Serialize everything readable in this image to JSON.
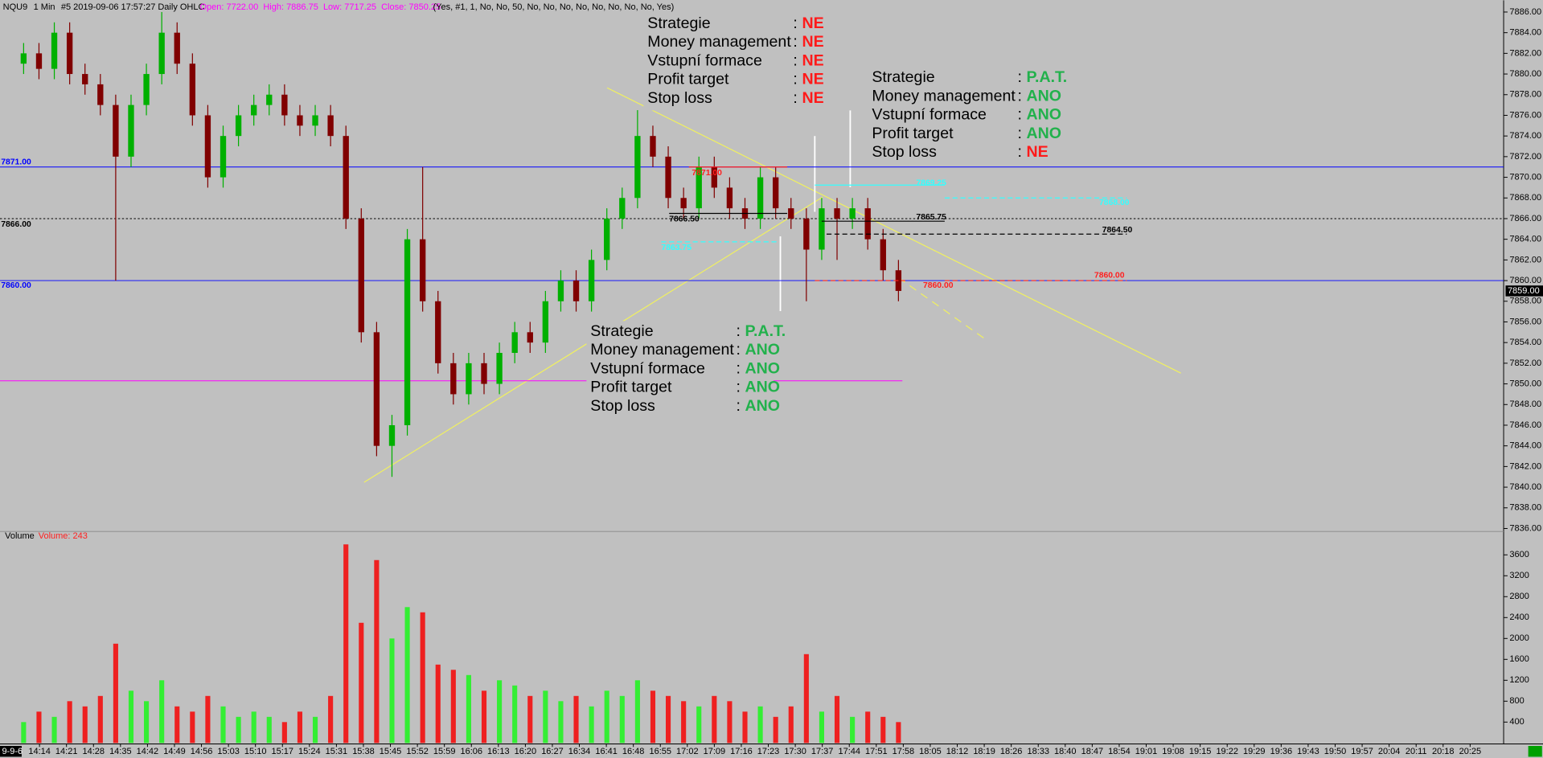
{
  "chart_data": {
    "type": "candlestick",
    "header": {
      "symbol": "NQU9",
      "interval": "1 Min",
      "info": "#5 2019-09-06 17:57:27 Daily OHLC",
      "ohlc": "Open: 7722.00  High: 7886.75  Low: 7717.25  Close: 7850.25",
      "params": "(Yes, #1, 1, No, No, 50, No, No, No, No, No, No, No, No, Yes)"
    },
    "volume_title": "Volume",
    "volume_label": "Volume: 243",
    "date_label": "9-9-6",
    "last_price": {
      "value": 7859,
      "label": "7859.00"
    },
    "open": [
      7881,
      7882,
      7880.5,
      7884,
      7880,
      7879,
      7877,
      7872,
      7877,
      7880,
      7884,
      7881,
      7876,
      7870,
      7874,
      7876,
      7877,
      7878,
      7876,
      7875,
      7876,
      7874,
      7866,
      7855,
      7844,
      7846,
      7864,
      7858,
      7852,
      7849,
      7852,
      7850,
      7853,
      7855,
      7854,
      7858,
      7860,
      7858,
      7862,
      7866,
      7868,
      7874,
      7872,
      7868,
      7867,
      7871,
      7869,
      7867,
      7866,
      7870,
      7867,
      7866,
      7863,
      7867,
      7866,
      7867,
      7864,
      7861
    ],
    "high": [
      7883,
      7883,
      7885,
      7885,
      7881,
      7880,
      7878,
      7878,
      7881,
      7886,
      7885,
      7882,
      7877,
      7875,
      7877,
      7878,
      7879,
      7879,
      7877,
      7877,
      7877,
      7875,
      7867,
      7856,
      7847,
      7865,
      7871,
      7859,
      7853,
      7853,
      7853,
      7854,
      7856,
      7856,
      7859,
      7861,
      7861,
      7863,
      7867,
      7869,
      7876.5,
      7875,
      7873,
      7869,
      7872,
      7872,
      7870,
      7868,
      7871,
      7871,
      7868,
      7867,
      7868,
      7868,
      7868,
      7868,
      7865,
      7862
    ],
    "low": [
      7880,
      7879.5,
      7879.5,
      7879,
      7878,
      7876,
      7860,
      7871,
      7876,
      7879,
      7880,
      7875,
      7869,
      7869,
      7873,
      7875,
      7876,
      7875,
      7874,
      7874,
      7873,
      7865,
      7854,
      7843,
      7841,
      7845,
      7857,
      7851,
      7848,
      7848,
      7849,
      7849,
      7852,
      7853,
      7853,
      7857,
      7857,
      7857,
      7861,
      7865,
      7867,
      7871,
      7867,
      7866,
      7866,
      7868,
      7866,
      7865,
      7865,
      7866,
      7865,
      7858,
      7862,
      7862,
      7865,
      7863,
      7860,
      7858
    ],
    "close": [
      7882,
      7880.5,
      7884,
      7880,
      7879,
      7877,
      7872,
      7877,
      7880,
      7884,
      7881,
      7876,
      7870,
      7874,
      7876,
      7877,
      7878,
      7876,
      7875,
      7876,
      7874,
      7866,
      7855,
      7844,
      7846,
      7864,
      7858,
      7852,
      7849,
      7852,
      7850,
      7853,
      7855,
      7854,
      7858,
      7860,
      7858,
      7862,
      7866,
      7868,
      7874,
      7872,
      7868,
      7867,
      7871,
      7869,
      7867,
      7866,
      7870,
      7867,
      7866,
      7863,
      7867,
      7866,
      7867,
      7864,
      7861,
      7859
    ],
    "volume": [
      400,
      600,
      500,
      800,
      700,
      900,
      1900,
      1000,
      800,
      1200,
      700,
      600,
      900,
      700,
      500,
      600,
      500,
      400,
      600,
      500,
      900,
      3800,
      2300,
      3500,
      2000,
      2600,
      2500,
      1500,
      1400,
      1300,
      1000,
      1200,
      1100,
      900,
      1000,
      800,
      900,
      700,
      1000,
      900,
      1200,
      1000,
      900,
      800,
      700,
      900,
      800,
      600,
      700,
      500,
      700,
      1700,
      600,
      900,
      500,
      600,
      500,
      400
    ],
    "up_color": "#00b000",
    "down_color": "#800000",
    "vol_up_color": "#33ee33",
    "vol_down_color": "#ee2020",
    "ylim": [
      7835.71,
      7887.14
    ],
    "yticks": [
      {
        "value": 7836,
        "label": "7836.00"
      },
      {
        "value": 7838,
        "label": "7838.00"
      },
      {
        "value": 7840,
        "label": "7840.00"
      },
      {
        "value": 7842,
        "label": "7842.00"
      },
      {
        "value": 7844,
        "label": "7844.00"
      },
      {
        "value": 7846,
        "label": "7846.00"
      },
      {
        "value": 7848,
        "label": "7848.00"
      },
      {
        "value": 7850,
        "label": "7850.00"
      },
      {
        "value": 7852,
        "label": "7852.00"
      },
      {
        "value": 7854,
        "label": "7854.00"
      },
      {
        "value": 7856,
        "label": "7856.00"
      },
      {
        "value": 7858,
        "label": "7858.00"
      },
      {
        "value": 7860,
        "label": "7860.00"
      },
      {
        "value": 7862,
        "label": "7862.00"
      },
      {
        "value": 7864,
        "label": "7864.00"
      },
      {
        "value": 7866,
        "label": "7866.00"
      },
      {
        "value": 7868,
        "label": "7868.00"
      },
      {
        "value": 7870,
        "label": "7870.00"
      },
      {
        "value": 7872,
        "label": "7872.00"
      },
      {
        "value": 7874,
        "label": "7874.00"
      },
      {
        "value": 7876,
        "label": "7876.00"
      },
      {
        "value": 7878,
        "label": "7878.00"
      },
      {
        "value": 7880,
        "label": "7880.00"
      },
      {
        "value": 7882,
        "label": "7882.00"
      },
      {
        "value": 7884,
        "label": "7884.00"
      },
      {
        "value": 7886,
        "label": "7886.00"
      }
    ],
    "y2lim": [
      0,
      4047
    ],
    "y2ticks": [
      400,
      800,
      1200,
      1600,
      2000,
      2400,
      2800,
      3200,
      3600
    ],
    "time_labels": [
      "14:14",
      "14:21",
      "14:28",
      "14:35",
      "14:42",
      "14:49",
      "14:56",
      "15:03",
      "15:10",
      "15:17",
      "15:24",
      "15:31",
      "15:38",
      "15:45",
      "15:52",
      "15:59",
      "16:06",
      "16:13",
      "16:20",
      "16:27",
      "16:34",
      "16:41",
      "16:48",
      "16:55",
      "17:02",
      "17:09",
      "17:16",
      "17:23",
      "17:30",
      "17:37",
      "17:44",
      "17:51",
      "17:58",
      "18:05",
      "18:12",
      "18:19",
      "18:26",
      "18:33",
      "18:40",
      "18:47",
      "18:54",
      "19:01",
      "19:08",
      "19:15",
      "19:22",
      "19:29",
      "19:36",
      "19:43",
      "19:50",
      "19:57",
      "20:04",
      "20:11",
      "20:18",
      "20:25"
    ],
    "levels": [
      {
        "value": 7871,
        "label": "7871.00",
        "color": "#0000ff"
      },
      {
        "value": 7866,
        "label": "7866.00",
        "color": "#000000"
      },
      {
        "value": 7860,
        "label": "7860.00",
        "color": "#0000ff"
      },
      {
        "value": 7850.3,
        "color": "#ff00ff"
      }
    ],
    "annotations": [
      {
        "value": 7871,
        "label": "7871.00",
        "color": "#ff2020"
      },
      {
        "value": 7866.5,
        "label": "7866.50",
        "color": "#000000"
      },
      {
        "value": 7865.75,
        "label": "7865.75",
        "color": "#000000"
      },
      {
        "value": 7864.5,
        "label": "7864.50",
        "color": "#000000"
      },
      {
        "value": 7869.25,
        "label": "7869.25",
        "color": "#33ffff"
      },
      {
        "value": 7868,
        "label": "7868.00",
        "color": "#33ffff"
      },
      {
        "value": 7863.75,
        "label": "7863.75",
        "color": "#33ffff"
      },
      {
        "value": 7860,
        "label": "7860.00",
        "color": "#ff2020"
      },
      {
        "value": 7860,
        "label": "7860.00",
        "color": "#ff2020"
      }
    ],
    "panels": [
      {
        "rows": [
          {
            "label": "Strategie",
            "value": "NE",
            "color": "#ff1a1a"
          },
          {
            "label": "Money management",
            "value": "NE",
            "color": "#ff1a1a"
          },
          {
            "label": "Vstupní formace",
            "value": "NE",
            "color": "#ff1a1a"
          },
          {
            "label": "Profit target",
            "value": "NE",
            "color": "#ff1a1a"
          },
          {
            "label": "Stop loss",
            "value": "NE",
            "color": "#ff1a1a"
          }
        ]
      },
      {
        "rows": [
          {
            "label": "Strategie",
            "value": "P.A.T.",
            "color": "#22b14c"
          },
          {
            "label": "Money management",
            "value": "ANO",
            "color": "#22b14c"
          },
          {
            "label": "Vstupní formace",
            "value": "ANO",
            "color": "#22b14c"
          },
          {
            "label": "Profit target",
            "value": "ANO",
            "color": "#22b14c"
          },
          {
            "label": "Stop loss",
            "value": "NE",
            "color": "#ff1a1a"
          }
        ]
      },
      {
        "rows": [
          {
            "label": "Strategie",
            "value": "P.A.T.",
            "color": "#22b14c"
          },
          {
            "label": "Money management",
            "value": "ANO",
            "color": "#22b14c"
          },
          {
            "label": "Vstupní formace",
            "value": "ANO",
            "color": "#22b14c"
          },
          {
            "label": "Profit target",
            "value": "ANO",
            "color": "#22b14c"
          },
          {
            "label": "Stop loss",
            "value": "ANO",
            "color": "#22b14c"
          }
        ]
      }
    ],
    "colon": ":"
  }
}
